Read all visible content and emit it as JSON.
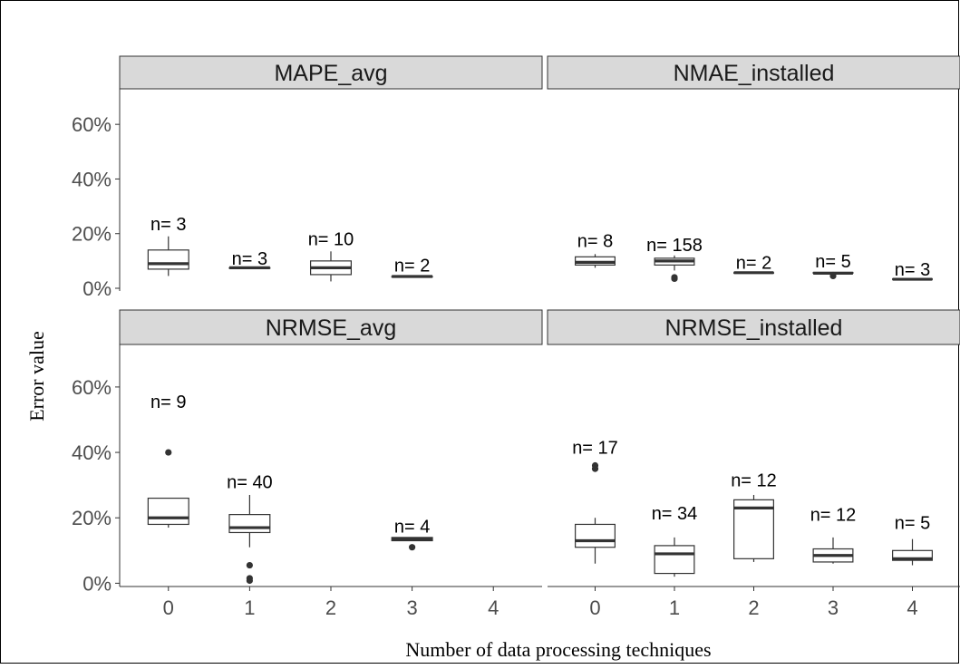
{
  "chart_data": {
    "type": "boxplot",
    "xlabel": "Number of data processing techniques",
    "ylabel": "Error value",
    "x_ticks": [
      "0",
      "1",
      "2",
      "3",
      "4"
    ],
    "y_ticks": [
      "0%",
      "20%",
      "40%",
      "60%"
    ],
    "ylim": [
      -0.01,
      0.73
    ],
    "panels": [
      {
        "name": "MAPE_avg",
        "boxes": [
          {
            "x": 0,
            "n_label": "n= 3",
            "n_y": 0.235,
            "lower": 0.045,
            "q1": 0.07,
            "median": 0.09,
            "q3": 0.14,
            "upper": 0.19,
            "outliers": []
          },
          {
            "x": 1,
            "n_label": "n= 3",
            "n_y": 0.11,
            "lower": 0.075,
            "q1": 0.075,
            "median": 0.075,
            "q3": 0.075,
            "upper": 0.075,
            "outliers": []
          },
          {
            "x": 2,
            "n_label": "n= 10",
            "n_y": 0.18,
            "lower": 0.025,
            "q1": 0.05,
            "median": 0.075,
            "q3": 0.1,
            "upper": 0.135,
            "outliers": []
          },
          {
            "x": 3,
            "n_label": "n= 2",
            "n_y": 0.085,
            "lower": 0.043,
            "q1": 0.043,
            "median": 0.043,
            "q3": 0.043,
            "upper": 0.043,
            "outliers": []
          }
        ]
      },
      {
        "name": "NMAE_installed",
        "boxes": [
          {
            "x": 0,
            "n_label": "n= 8",
            "n_y": 0.175,
            "lower": 0.075,
            "q1": 0.085,
            "median": 0.095,
            "q3": 0.115,
            "upper": 0.125,
            "outliers": []
          },
          {
            "x": 1,
            "n_label": "n= 158",
            "n_y": 0.16,
            "lower": 0.065,
            "q1": 0.085,
            "median": 0.1,
            "q3": 0.11,
            "upper": 0.12,
            "outliers": [
              0.04,
              0.035
            ]
          },
          {
            "x": 2,
            "n_label": "n= 2",
            "n_y": 0.095,
            "lower": 0.057,
            "q1": 0.057,
            "median": 0.057,
            "q3": 0.057,
            "upper": 0.057,
            "outliers": []
          },
          {
            "x": 3,
            "n_label": "n= 5",
            "n_y": 0.1,
            "lower": 0.055,
            "q1": 0.055,
            "median": 0.055,
            "q3": 0.058,
            "upper": 0.06,
            "outliers": [
              0.045
            ]
          },
          {
            "x": 4,
            "n_label": "n= 3",
            "n_y": 0.07,
            "lower": 0.033,
            "q1": 0.033,
            "median": 0.033,
            "q3": 0.034,
            "upper": 0.035,
            "outliers": []
          }
        ]
      },
      {
        "name": "NRMSE_avg",
        "boxes": [
          {
            "x": 0,
            "n_label": "n= 9",
            "n_y": 0.555,
            "lower": 0.17,
            "q1": 0.18,
            "median": 0.2,
            "q3": 0.26,
            "upper": 0.26,
            "outliers": [
              0.4
            ]
          },
          {
            "x": 1,
            "n_label": "n= 40",
            "n_y": 0.31,
            "lower": 0.11,
            "q1": 0.155,
            "median": 0.17,
            "q3": 0.21,
            "upper": 0.27,
            "outliers": [
              0.055,
              0.015,
              0.008
            ]
          },
          {
            "x": 3,
            "n_label": "n= 4",
            "n_y": 0.175,
            "lower": 0.13,
            "q1": 0.13,
            "median": 0.135,
            "q3": 0.14,
            "upper": 0.14,
            "outliers": [
              0.11
            ]
          }
        ]
      },
      {
        "name": "NRMSE_installed",
        "boxes": [
          {
            "x": 0,
            "n_label": "n= 17",
            "n_y": 0.415,
            "lower": 0.06,
            "q1": 0.11,
            "median": 0.13,
            "q3": 0.18,
            "upper": 0.2,
            "outliers": [
              0.36,
              0.35
            ]
          },
          {
            "x": 1,
            "n_label": "n= 34",
            "n_y": 0.215,
            "lower": 0.02,
            "q1": 0.03,
            "median": 0.09,
            "q3": 0.115,
            "upper": 0.14,
            "outliers": []
          },
          {
            "x": 2,
            "n_label": "n= 12",
            "n_y": 0.315,
            "lower": 0.065,
            "q1": 0.075,
            "median": 0.23,
            "q3": 0.255,
            "upper": 0.27,
            "outliers": []
          },
          {
            "x": 3,
            "n_label": "n= 12",
            "n_y": 0.21,
            "lower": 0.06,
            "q1": 0.065,
            "median": 0.085,
            "q3": 0.105,
            "upper": 0.14,
            "outliers": []
          },
          {
            "x": 4,
            "n_label": "n= 5",
            "n_y": 0.185,
            "lower": 0.055,
            "q1": 0.07,
            "median": 0.075,
            "q3": 0.1,
            "upper": 0.135,
            "outliers": []
          }
        ]
      }
    ]
  }
}
